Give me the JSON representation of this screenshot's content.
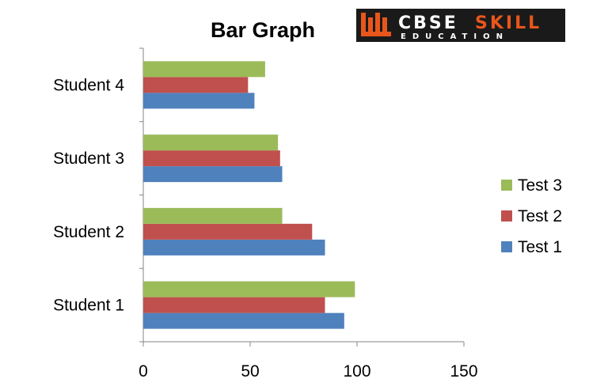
{
  "logo": {
    "line1_a": "CBSE",
    "line1_b": "SKILL",
    "line2": "EDUCATION",
    "colors": {
      "background": "#1a1a1a",
      "accent": "#e8561c",
      "text": "#ffffff"
    }
  },
  "chart_data": {
    "type": "bar",
    "orientation": "horizontal",
    "title": "Bar Graph",
    "categories": [
      "Student 1",
      "Student 2",
      "Student 3",
      "Student 4"
    ],
    "series": [
      {
        "name": "Test 1",
        "values": [
          94,
          85,
          65,
          52
        ],
        "color": "#4f81bd"
      },
      {
        "name": "Test 2",
        "values": [
          85,
          79,
          64,
          49
        ],
        "color": "#c0504d"
      },
      {
        "name": "Test 3",
        "values": [
          99,
          65,
          63,
          57
        ],
        "color": "#9bbb59"
      }
    ],
    "xlim": [
      0,
      150
    ],
    "xticks": [
      "0",
      "50",
      "100",
      "150"
    ],
    "grid": false,
    "legend": {
      "position": "right",
      "entries": [
        "Test 3",
        "Test 2",
        "Test 1"
      ]
    }
  }
}
